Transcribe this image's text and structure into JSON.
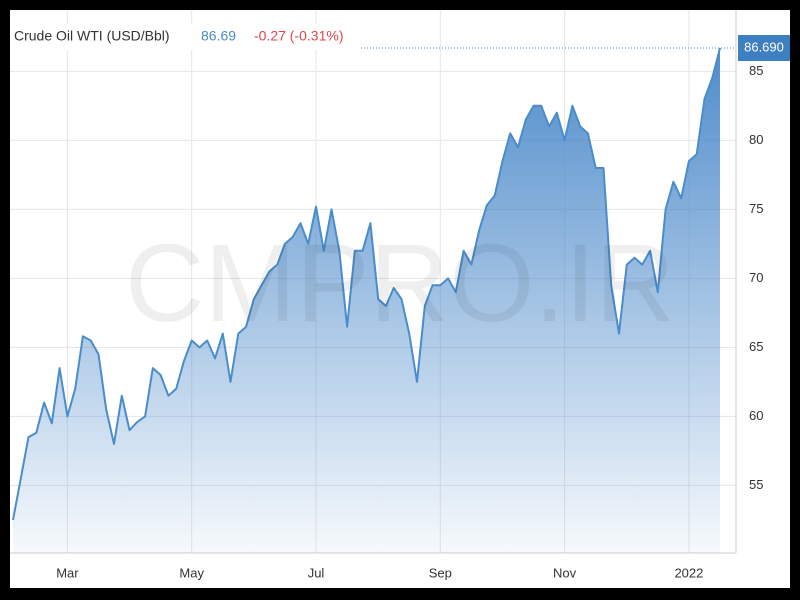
{
  "chart_data": {
    "type": "area",
    "title": "Crude Oil WTI (USD/Bbl)",
    "price": "86.69",
    "change": "-0.27 (-0.31%)",
    "last_label": "86.690",
    "watermark": "CMPRO.IR",
    "color": "#4a8ccc",
    "categories": [
      null,
      null,
      null,
      null,
      null,
      null,
      null,
      "Mar",
      null,
      null,
      null,
      null,
      null,
      null,
      null,
      null,
      null,
      null,
      null,
      null,
      null,
      null,
      null,
      "May",
      null,
      null,
      null,
      null,
      null,
      null,
      null,
      null,
      null,
      null,
      null,
      null,
      null,
      null,
      null,
      "Jul",
      null,
      null,
      null,
      null,
      null,
      null,
      null,
      null,
      null,
      null,
      null,
      null,
      null,
      null,
      null,
      "Sep",
      null,
      null,
      null,
      null,
      null,
      null,
      null,
      null,
      null,
      null,
      null,
      null,
      null,
      null,
      null,
      "Nov",
      null,
      null,
      null,
      null,
      null,
      null,
      null,
      null,
      null,
      null,
      null,
      null,
      null,
      null,
      null,
      "2022",
      null,
      null,
      null,
      null
    ],
    "values": [
      52.5,
      55.5,
      58.5,
      58.8,
      61,
      59.5,
      63.5,
      60,
      62,
      65.8,
      65.5,
      64.5,
      60.5,
      58,
      61.5,
      59,
      59.6,
      60,
      63.5,
      63,
      61.5,
      62,
      64,
      65.5,
      65,
      65.5,
      64.2,
      66,
      62.5,
      66,
      66.5,
      68.5,
      69.5,
      70.5,
      71,
      72.5,
      73,
      74,
      72.5,
      75.2,
      72,
      75,
      72,
      66.5,
      72,
      72,
      74,
      68.5,
      68,
      69.3,
      68.5,
      66,
      62.5,
      68,
      69.5,
      69.5,
      70,
      69,
      72,
      71,
      73.5,
      75.3,
      76,
      78.5,
      80.5,
      79.5,
      81.5,
      82.5,
      82.5,
      81,
      82,
      80,
      82.5,
      81,
      80.5,
      78,
      78,
      69.5,
      66,
      71,
      71.5,
      71,
      72,
      69,
      75,
      77,
      75.8,
      78.5,
      79,
      83,
      84.5,
      86.69
    ],
    "ylim": [
      50.1,
      89.3
    ],
    "yticks": [
      55,
      60,
      65,
      70,
      75,
      80,
      85
    ],
    "grid": true
  }
}
